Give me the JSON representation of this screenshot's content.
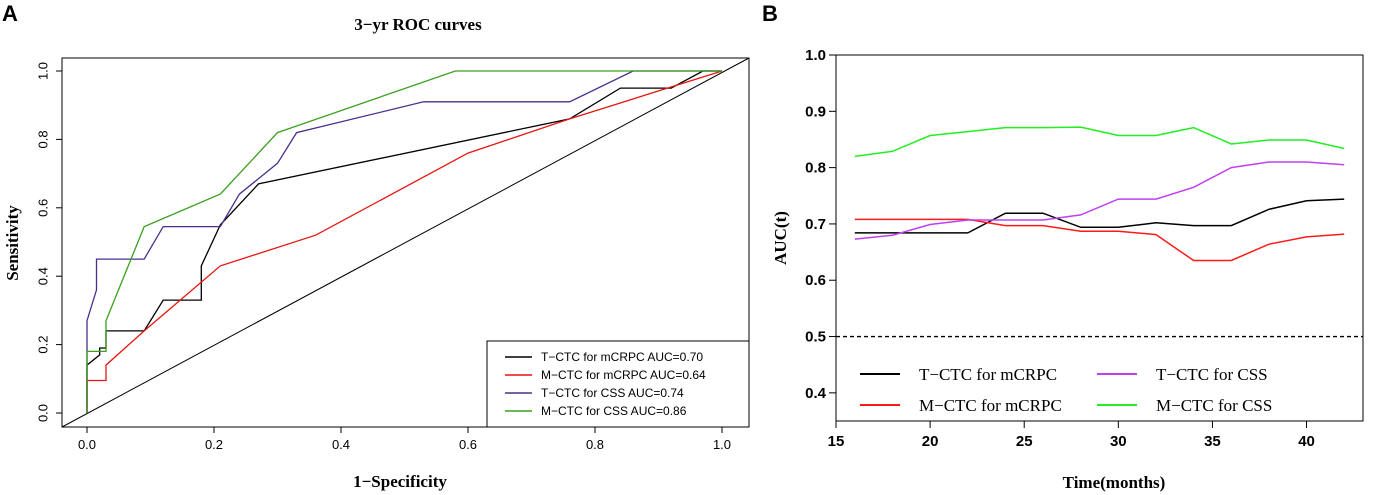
{
  "chart_data": [
    {
      "panel": "A",
      "type": "line",
      "title": "3−yr ROC curves",
      "xlabel": "1−Specificity",
      "ylabel": "Sensitivity",
      "xlim": [
        0,
        1
      ],
      "ylim": [
        0,
        1
      ],
      "xticks": [
        "0.0",
        "0.2",
        "0.4",
        "0.6",
        "0.8",
        "1.0"
      ],
      "yticks": [
        "0.0",
        "0.2",
        "0.4",
        "0.6",
        "0.8",
        "1.0"
      ],
      "legend_position": "bottom-right",
      "reference_line": "diagonal",
      "series": [
        {
          "name": "T−CTC for mCRPC AUC=0.70",
          "color": "#000000",
          "x": [
            0,
            0,
            0.02,
            0.02,
            0.03,
            0.03,
            0.09,
            0.12,
            0.18,
            0.18,
            0.21,
            0.27,
            0.76,
            0.84,
            0.92,
            0.97,
            1.0
          ],
          "y": [
            0,
            0.14,
            0.17,
            0.19,
            0.19,
            0.24,
            0.24,
            0.33,
            0.33,
            0.43,
            0.55,
            0.67,
            0.86,
            0.95,
            0.95,
            1.0,
            1.0
          ]
        },
        {
          "name": "M−CTC for mCRPC AUC=0.64",
          "color": "#e8140f",
          "x": [
            0,
            0,
            0.03,
            0.03,
            0.09,
            0.21,
            0.36,
            0.6,
            0.76,
            1.0
          ],
          "y": [
            0,
            0.095,
            0.095,
            0.14,
            0.24,
            0.43,
            0.52,
            0.76,
            0.86,
            1.0
          ],
          "note": "reference diagonal from (0,0) to (1,1)"
        },
        {
          "name": "T−CTC for CSS AUC=0.74",
          "color": "#4b2e8c",
          "x": [
            0,
            0,
            0.015,
            0.015,
            0.03,
            0.03,
            0.09,
            0.12,
            0.21,
            0.24,
            0.3,
            0.33,
            0.53,
            0.76,
            0.86,
            1.0
          ],
          "y": [
            0,
            0.27,
            0.36,
            0.45,
            0.45,
            0.45,
            0.45,
            0.545,
            0.545,
            0.64,
            0.73,
            0.82,
            0.91,
            0.91,
            1.0,
            1.0
          ]
        },
        {
          "name": "M−CTC for CSS AUC=0.86",
          "color": "#3aa01e",
          "x": [
            0,
            0,
            0.03,
            0.03,
            0.09,
            0.21,
            0.3,
            0.58,
            1.0
          ],
          "y": [
            0,
            0.18,
            0.18,
            0.27,
            0.545,
            0.64,
            0.82,
            1.0,
            1.0
          ]
        }
      ]
    },
    {
      "panel": "B",
      "type": "line",
      "title": "",
      "xlabel": "Time(months)",
      "ylabel": "AUC(t)",
      "xlim": [
        15,
        43
      ],
      "ylim": [
        0.35,
        1.0
      ],
      "xticks": [
        "15",
        "20",
        "25",
        "30",
        "35",
        "40"
      ],
      "yticks": [
        "0.4",
        "0.5",
        "0.6",
        "0.7",
        "0.8",
        "0.9",
        "1.0"
      ],
      "reference_hline": 0.5,
      "legend_position": "bottom",
      "x": [
        16,
        18,
        20,
        22,
        24,
        26,
        28,
        30,
        32,
        34,
        36,
        38,
        40,
        42
      ],
      "series": [
        {
          "name": "T−CTC for mCRPC",
          "color": "#000000",
          "values": [
            0.684,
            0.684,
            0.684,
            0.684,
            0.719,
            0.719,
            0.694,
            0.694,
            0.702,
            0.697,
            0.697,
            0.726,
            0.741,
            0.744
          ]
        },
        {
          "name": "M−CTC for mCRPC",
          "color": "#ff1a1a",
          "values": [
            0.708,
            0.708,
            0.708,
            0.708,
            0.697,
            0.697,
            0.687,
            0.687,
            0.681,
            0.635,
            0.635,
            0.664,
            0.677,
            0.682
          ]
        },
        {
          "name": "T−CTC for CSS",
          "color": "#c040f0",
          "values": [
            0.673,
            0.68,
            0.699,
            0.707,
            0.707,
            0.707,
            0.716,
            0.744,
            0.744,
            0.765,
            0.8,
            0.81,
            0.81,
            0.805
          ]
        },
        {
          "name": "M−CTC for CSS",
          "color": "#22ee22",
          "values": [
            0.82,
            0.829,
            0.857,
            0.864,
            0.871,
            0.871,
            0.872,
            0.857,
            0.857,
            0.871,
            0.842,
            0.849,
            0.849,
            0.834
          ]
        }
      ]
    }
  ]
}
